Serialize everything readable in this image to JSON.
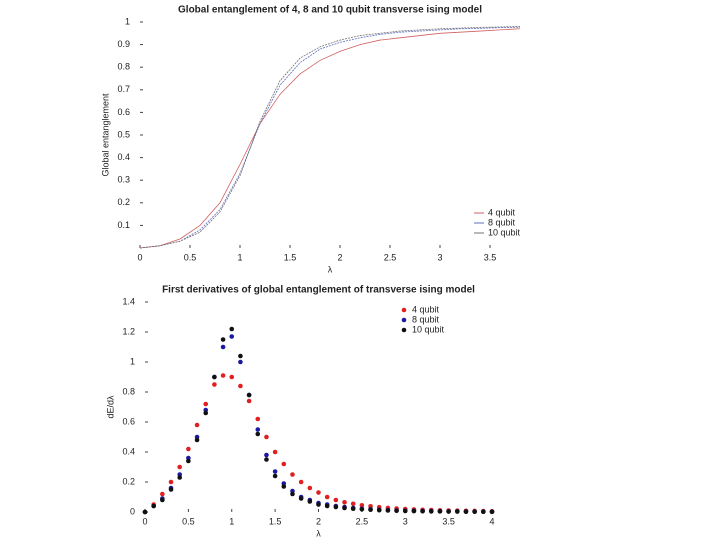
{
  "chart_data": [
    {
      "type": "line",
      "title": "Global entanglement of 4, 8 and 10 qubit transverse ising model",
      "x_label": "λ",
      "y_label": "Global entanglement",
      "x": [
        0,
        0.2,
        0.4,
        0.6,
        0.8,
        1.0,
        1.2,
        1.4,
        1.6,
        1.8,
        2.0,
        2.2,
        2.4,
        2.6,
        2.8,
        3.0,
        3.2,
        3.4,
        3.6,
        3.8
      ],
      "series": [
        {
          "name": "4 qubit",
          "color": "#d06060",
          "values": [
            0,
            0.01,
            0.04,
            0.1,
            0.2,
            0.37,
            0.55,
            0.68,
            0.77,
            0.83,
            0.87,
            0.9,
            0.92,
            0.93,
            0.94,
            0.95,
            0.955,
            0.96,
            0.965,
            0.97
          ]
        },
        {
          "name": "8 qubit",
          "color": "#6070c0",
          "values": [
            0,
            0.01,
            0.03,
            0.08,
            0.17,
            0.33,
            0.55,
            0.72,
            0.82,
            0.88,
            0.91,
            0.93,
            0.945,
            0.955,
            0.96,
            0.965,
            0.97,
            0.972,
            0.975,
            0.977
          ]
        },
        {
          "name": "10 qubit",
          "color": "#707070",
          "values": [
            0,
            0.01,
            0.03,
            0.07,
            0.16,
            0.32,
            0.56,
            0.74,
            0.84,
            0.89,
            0.92,
            0.94,
            0.95,
            0.96,
            0.965,
            0.97,
            0.973,
            0.976,
            0.978,
            0.98
          ]
        }
      ],
      "xlim": [
        0,
        3.8
      ],
      "ylim": [
        0,
        1
      ],
      "xticks": [
        0,
        0.5,
        1,
        1.5,
        2,
        2.5,
        3,
        3.5
      ],
      "yticks": [
        0.1,
        0.2,
        0.3,
        0.4,
        0.5,
        0.6,
        0.7,
        0.8,
        0.9,
        1
      ],
      "legend": "lower right"
    },
    {
      "type": "scatter",
      "title": "First derivatives of global entanglement of transverse ising model",
      "x_label": "λ",
      "y_label": "dE/dλ",
      "x": [
        0,
        0.1,
        0.2,
        0.3,
        0.4,
        0.5,
        0.6,
        0.7,
        0.8,
        0.9,
        1.0,
        1.1,
        1.2,
        1.3,
        1.4,
        1.5,
        1.6,
        1.7,
        1.8,
        1.9,
        2.0,
        2.1,
        2.2,
        2.3,
        2.4,
        2.5,
        2.6,
        2.7,
        2.8,
        2.9,
        3.0,
        3.1,
        3.2,
        3.3,
        3.4,
        3.5,
        3.6,
        3.7,
        3.8,
        3.9,
        4.0
      ],
      "series": [
        {
          "name": "4 qubit",
          "color": "#e02020",
          "values": [
            0,
            0.05,
            0.12,
            0.2,
            0.3,
            0.42,
            0.58,
            0.72,
            0.85,
            0.91,
            0.9,
            0.84,
            0.74,
            0.62,
            0.5,
            0.4,
            0.32,
            0.25,
            0.2,
            0.16,
            0.13,
            0.1,
            0.08,
            0.065,
            0.055,
            0.045,
            0.038,
            0.032,
            0.027,
            0.023,
            0.02,
            0.017,
            0.015,
            0.013,
            0.011,
            0.01,
            0.009,
            0.008,
            0.007,
            0.006,
            0.005
          ]
        },
        {
          "name": "8 qubit",
          "color": "#1a1aa0",
          "values": [
            0,
            0.04,
            0.09,
            0.16,
            0.25,
            0.36,
            0.5,
            0.68,
            0.9,
            1.1,
            1.17,
            1.0,
            0.78,
            0.55,
            0.38,
            0.27,
            0.19,
            0.14,
            0.1,
            0.08,
            0.06,
            0.05,
            0.04,
            0.033,
            0.027,
            0.022,
            0.018,
            0.015,
            0.012,
            0.01,
            0.009,
            0.008,
            0.007,
            0.006,
            0.005,
            0.004,
            0.004,
            0.003,
            0.003,
            0.002,
            0.002
          ]
        },
        {
          "name": "10 qubit",
          "color": "#111111",
          "values": [
            0,
            0.04,
            0.08,
            0.15,
            0.23,
            0.34,
            0.48,
            0.66,
            0.9,
            1.15,
            1.22,
            1.04,
            0.78,
            0.52,
            0.35,
            0.24,
            0.17,
            0.12,
            0.09,
            0.07,
            0.05,
            0.04,
            0.033,
            0.027,
            0.022,
            0.018,
            0.015,
            0.012,
            0.01,
            0.008,
            0.007,
            0.006,
            0.005,
            0.004,
            0.004,
            0.003,
            0.003,
            0.002,
            0.002,
            0.002,
            0.001
          ]
        }
      ],
      "xlim": [
        0,
        4
      ],
      "ylim": [
        0,
        1.4
      ],
      "xticks": [
        0,
        0.5,
        1,
        1.5,
        2,
        2.5,
        3,
        3.5,
        4
      ],
      "yticks": [
        0,
        0.2,
        0.4,
        0.6,
        0.8,
        1,
        1.2,
        1.4
      ],
      "legend": "upper right"
    }
  ]
}
